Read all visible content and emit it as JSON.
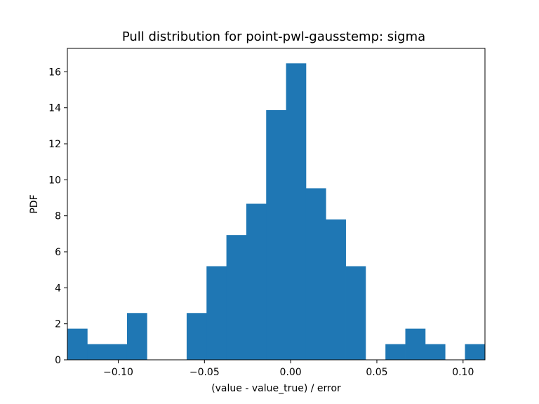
{
  "chart_data": {
    "type": "bar",
    "title": "Pull distribution for point-pwl-gausstemp: sigma",
    "xlabel": "(value - value_true) / error",
    "ylabel": "PDF",
    "xlim": [
      -0.1295,
      0.1127
    ],
    "ylim": [
      0,
      17.3
    ],
    "x_ticks": [
      -0.1,
      -0.05,
      0.0,
      0.05,
      0.1
    ],
    "x_tick_labels": [
      "−0.10",
      "−0.05",
      "0.00",
      "0.05",
      "0.10"
    ],
    "y_ticks": [
      0,
      2,
      4,
      6,
      8,
      10,
      12,
      14,
      16
    ],
    "y_tick_labels": [
      "0",
      "2",
      "4",
      "6",
      "8",
      "10",
      "12",
      "14",
      "16"
    ],
    "bin_edges": [
      -0.1295,
      -0.11797,
      -0.10644,
      -0.09491,
      -0.08338,
      -0.07185,
      -0.06032,
      -0.04879,
      -0.03726,
      -0.02573,
      -0.0142,
      -0.00267,
      0.00886,
      0.02039,
      0.03192,
      0.04345,
      0.05498,
      0.06651,
      0.07804,
      0.08957,
      0.1011,
      0.1127
    ],
    "values": [
      1.73,
      0.87,
      0.87,
      2.6,
      0,
      0,
      2.6,
      5.2,
      6.93,
      8.67,
      13.87,
      16.47,
      9.53,
      7.8,
      5.2,
      0,
      0.87,
      1.73,
      0.87,
      0,
      0.87
    ],
    "color": "#1f77b4",
    "grid": false,
    "legend": false
  }
}
